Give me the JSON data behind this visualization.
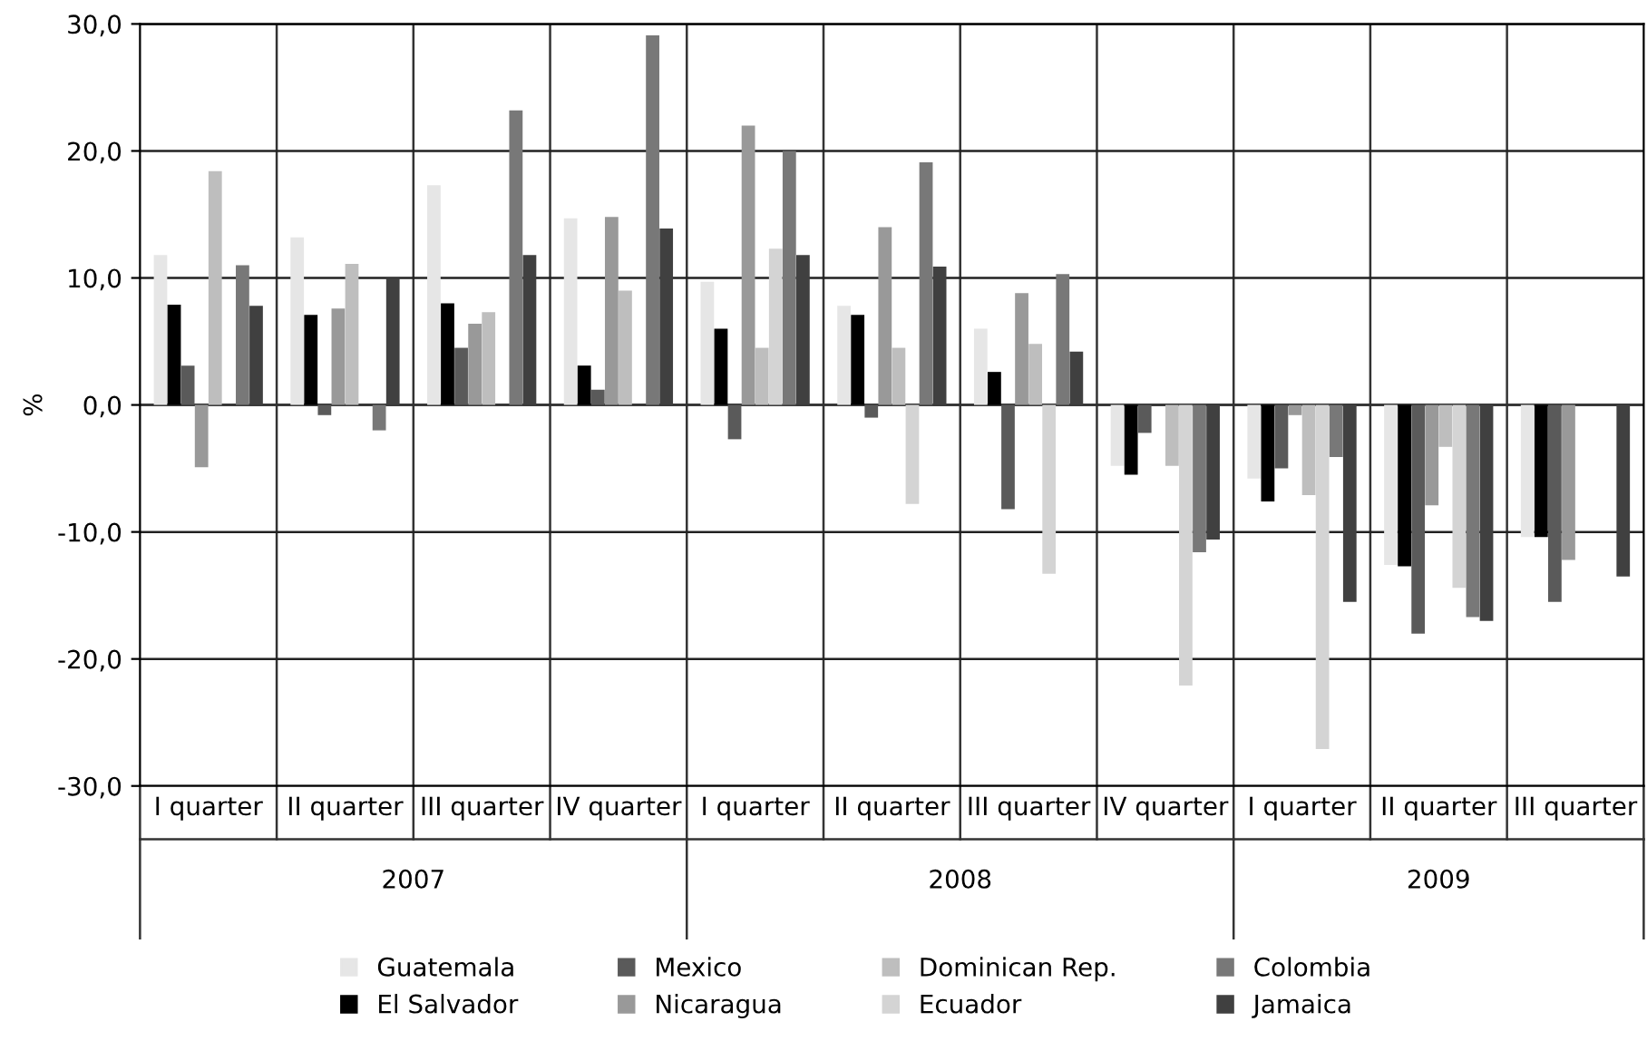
{
  "chart_data": {
    "type": "bar",
    "ylabel": "%",
    "categories": [
      "I quarter",
      "II quarter",
      "III quarter",
      "IV quarter",
      "I quarter",
      "II quarter",
      "III quarter",
      "IV quarter",
      "I quarter",
      "II quarter",
      "III quarter"
    ],
    "annotations": [
      "2007",
      "2008",
      "2009"
    ],
    "ylim": [
      -30,
      30
    ],
    "yticks": [
      {
        "value": -30,
        "label": "-30,0"
      },
      {
        "value": -20,
        "label": "-20,0"
      },
      {
        "value": -10,
        "label": "-10,0"
      },
      {
        "value": 0,
        "label": "0,0"
      },
      {
        "value": 10,
        "label": "10,0"
      },
      {
        "value": 20,
        "label": "20,0"
      },
      {
        "value": 30,
        "label": "30,0"
      }
    ],
    "grid": "y",
    "legend": "bottom",
    "series": [
      {
        "name": "Guatemala",
        "color": "#e6e6e6",
        "values": [
          11.8,
          13.2,
          17.3,
          14.7,
          9.7,
          7.8,
          6.0,
          -4.8,
          -5.8,
          -12.6,
          -10.4
        ]
      },
      {
        "name": "El Salvador",
        "color": "#000000",
        "values": [
          7.9,
          7.1,
          8.0,
          3.1,
          6.0,
          7.1,
          2.6,
          -5.5,
          -7.6,
          -12.7,
          -10.4
        ]
      },
      {
        "name": "Mexico",
        "color": "#5a5a5a",
        "values": [
          3.1,
          -0.8,
          4.5,
          1.2,
          -2.7,
          -1.0,
          -8.2,
          -2.2,
          -5.0,
          -18.0,
          -15.5
        ]
      },
      {
        "name": "Nicaragua",
        "color": "#999999",
        "values": [
          -4.9,
          7.6,
          6.4,
          14.8,
          22.0,
          14.0,
          8.8,
          0.0,
          -0.8,
          -7.9,
          -12.2
        ]
      },
      {
        "name": "Dominican Rep.",
        "color": "#bebebe",
        "values": [
          18.4,
          11.1,
          7.3,
          9.0,
          4.5,
          4.5,
          4.8,
          -4.8,
          -7.1,
          -3.3,
          null
        ]
      },
      {
        "name": "Ecuador",
        "color": "#d4d4d4",
        "values": [
          null,
          null,
          null,
          null,
          12.3,
          -7.8,
          -13.3,
          -22.1,
          -27.1,
          -14.4,
          null
        ]
      },
      {
        "name": "Colombia",
        "color": "#787878",
        "values": [
          11.0,
          -2.0,
          23.2,
          29.1,
          20.0,
          19.1,
          10.3,
          -11.6,
          -4.1,
          -16.7,
          null
        ]
      },
      {
        "name": "Jamaica",
        "color": "#404040",
        "values": [
          7.8,
          10.0,
          11.8,
          13.9,
          11.8,
          10.9,
          4.2,
          -10.6,
          -15.5,
          -17.0,
          -13.5
        ]
      }
    ]
  }
}
